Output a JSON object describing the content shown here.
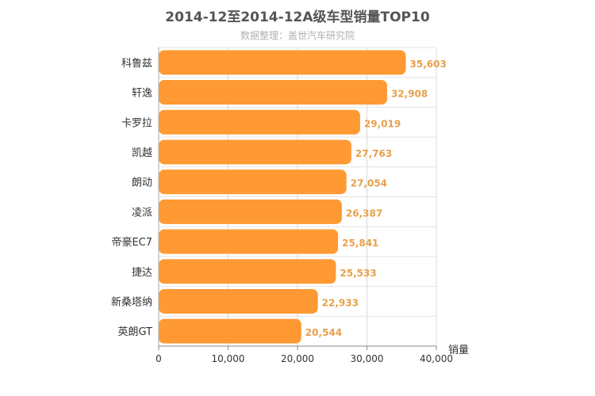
{
  "chart_data": {
    "type": "bar",
    "orientation": "horizontal",
    "title": "2014-12至2014-12A级车型销量TOP10",
    "subtitle": "数据整理：盖世汽车研究院",
    "categories": [
      "科鲁兹",
      "轩逸",
      "卡罗拉",
      "凯越",
      "朗动",
      "凌派",
      "帝豪EC7",
      "捷达",
      "新桑塔纳",
      "英朗GT"
    ],
    "values": [
      35603,
      32908,
      29019,
      27763,
      27054,
      26387,
      25841,
      25533,
      22933,
      20544
    ],
    "value_labels": [
      "35,603",
      "32,908",
      "29,019",
      "27,763",
      "27,054",
      "26,387",
      "25,841",
      "25,533",
      "22,933",
      "20,544"
    ],
    "xlabel": "销量",
    "ylabel": "",
    "xlim": [
      0,
      40000
    ],
    "ticks": [
      0,
      10000,
      20000,
      30000,
      40000
    ],
    "tick_labels": [
      "0",
      "10,000",
      "20,000",
      "30,000",
      "40,000"
    ],
    "grid": true,
    "bar_color": "#ff9933",
    "label_color": "#e8a04a"
  }
}
